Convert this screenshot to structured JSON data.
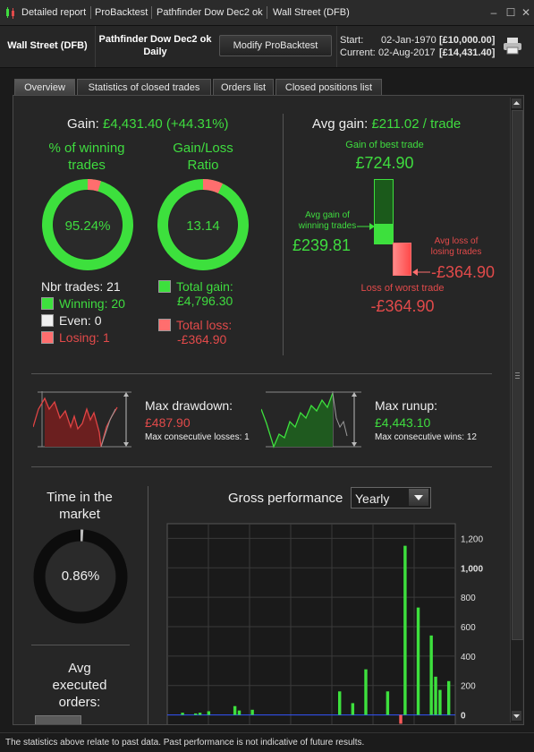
{
  "titlebar": {
    "items": [
      "Detailed report",
      "ProBacktest",
      "Pathfinder Dow Dec2 ok",
      "Wall Street (DFB)"
    ]
  },
  "header": {
    "instrument": "Wall Street (DFB)",
    "strategy_name": "Pathfinder Dow Dec2 ok",
    "timeframe": "Daily",
    "modify_label": "Modify ProBacktest",
    "start_label": "Start:",
    "start_date": "02-Jan-1970",
    "start_value": "[£10,000.00]",
    "current_label": "Current:",
    "current_date": "02-Aug-2017",
    "current_value": "[£14,431.40]"
  },
  "tabs": [
    "Overview",
    "Statistics of closed trades",
    "Orders list",
    "Closed positions list"
  ],
  "gain": {
    "label": "Gain:",
    "value": "£4,431.40 (+44.31%)"
  },
  "winning": {
    "title_line1": "% of winning",
    "title_line2": "trades",
    "percent": "95.24%",
    "fraction_winning": 0.9524
  },
  "ratio": {
    "title_line1": "Gain/Loss",
    "title_line2": "Ratio",
    "value": "13.14",
    "fraction_gain": 0.929
  },
  "trades": {
    "nbr": "Nbr trades: 21",
    "winning": "Winning: 20",
    "even": "Even: 0",
    "losing": "Losing: 1",
    "total_gain_label": "Total gain:",
    "total_gain_value": "£4,796.30",
    "total_loss_label": "Total loss:",
    "total_loss_value": "-£364.90"
  },
  "avg": {
    "label": "Avg gain:",
    "value": "£211.02 / trade",
    "best_label": "Gain of best trade",
    "best_value": "£724.90",
    "avg_win_label_1": "Avg gain of",
    "avg_win_label_2": "winning trades",
    "avg_win_value": "£239.81",
    "avg_loss_label_1": "Avg loss of",
    "avg_loss_label_2": "losing trades",
    "avg_loss_value": "-£364.90",
    "worst_label": "Loss of worst trade",
    "worst_value": "-£364.90"
  },
  "drawdown": {
    "label": "Max drawdown:",
    "value": "£487.90",
    "sub": "Max consecutive losses: 1"
  },
  "runup": {
    "label": "Max runup:",
    "value": "£4,443.10",
    "sub": "Max consecutive wins: 12"
  },
  "market": {
    "title_line1": "Time in the",
    "title_line2": "market",
    "percent": "0.86%",
    "fraction": 0.0086
  },
  "orders": {
    "title_line1": "Avg",
    "title_line2": "executed",
    "title_line3": "orders:"
  },
  "gross": {
    "label": "Gross performance",
    "period": "Yearly"
  },
  "chart_data": {
    "type": "bar",
    "ylim": [
      -100,
      1300
    ],
    "yticks": [
      {
        "value": 1200,
        "label": "1,200",
        "bold": false
      },
      {
        "value": 1000,
        "label": "1,000",
        "bold": true
      },
      {
        "value": 800,
        "label": "800",
        "bold": false
      },
      {
        "value": 600,
        "label": "600",
        "bold": false
      },
      {
        "value": 400,
        "label": "400",
        "bold": false
      },
      {
        "value": 200,
        "label": "200",
        "bold": false
      },
      {
        "value": 0,
        "label": "0",
        "bold": true
      }
    ],
    "values": [
      0,
      0,
      0,
      15,
      0,
      0,
      10,
      15,
      0,
      25,
      0,
      0,
      0,
      0,
      0,
      60,
      30,
      0,
      0,
      35,
      0,
      0,
      0,
      0,
      0,
      0,
      0,
      0,
      0,
      0,
      0,
      0,
      0,
      0,
      0,
      0,
      0,
      0,
      0,
      160,
      0,
      0,
      80,
      0,
      0,
      310,
      0,
      0,
      0,
      0,
      160,
      0,
      0,
      -60,
      1150,
      0,
      0,
      730,
      0,
      0,
      540,
      260,
      170,
      0,
      230,
      0
    ],
    "series_colors": {
      "positive": "#3de03d",
      "negative": "#ff5a5a"
    },
    "grid": true
  },
  "footer": {
    "text": "The statistics above relate to past data. Past performance is not indicative of future results."
  }
}
